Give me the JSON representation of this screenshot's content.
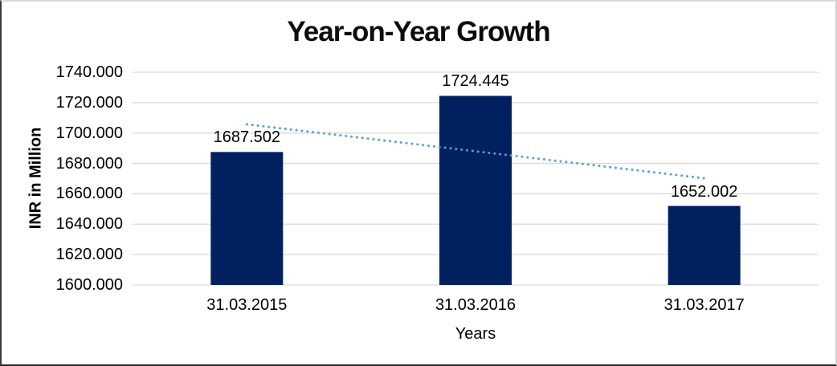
{
  "chart_data": {
    "type": "bar",
    "title": "Year-on-Year Growth",
    "categories": [
      "31.03.2015",
      "31.03.2016",
      "31.03.2017"
    ],
    "values": [
      1687.502,
      1724.445,
      1652.002
    ],
    "data_labels": [
      "1687.502",
      "1724.445",
      "1652.002"
    ],
    "xlabel": "Years",
    "ylabel": "INR in Million",
    "ylim": [
      1600,
      1740
    ],
    "ytick_step": 20,
    "ytick_labels": [
      "1740.000",
      "1720.000",
      "1700.000",
      "1680.000",
      "1660.000",
      "1640.000",
      "1620.000",
      "1600.000"
    ],
    "grid": true,
    "legend": "none",
    "colors": {
      "bar": "#002060",
      "gridline": "#d9d9d9",
      "trendline": "#5b9bd5",
      "text": "#000000",
      "background": "#ffffff"
    },
    "trendline": {
      "type": "linear",
      "style": "dotted",
      "color": "#5b9bd5"
    }
  }
}
